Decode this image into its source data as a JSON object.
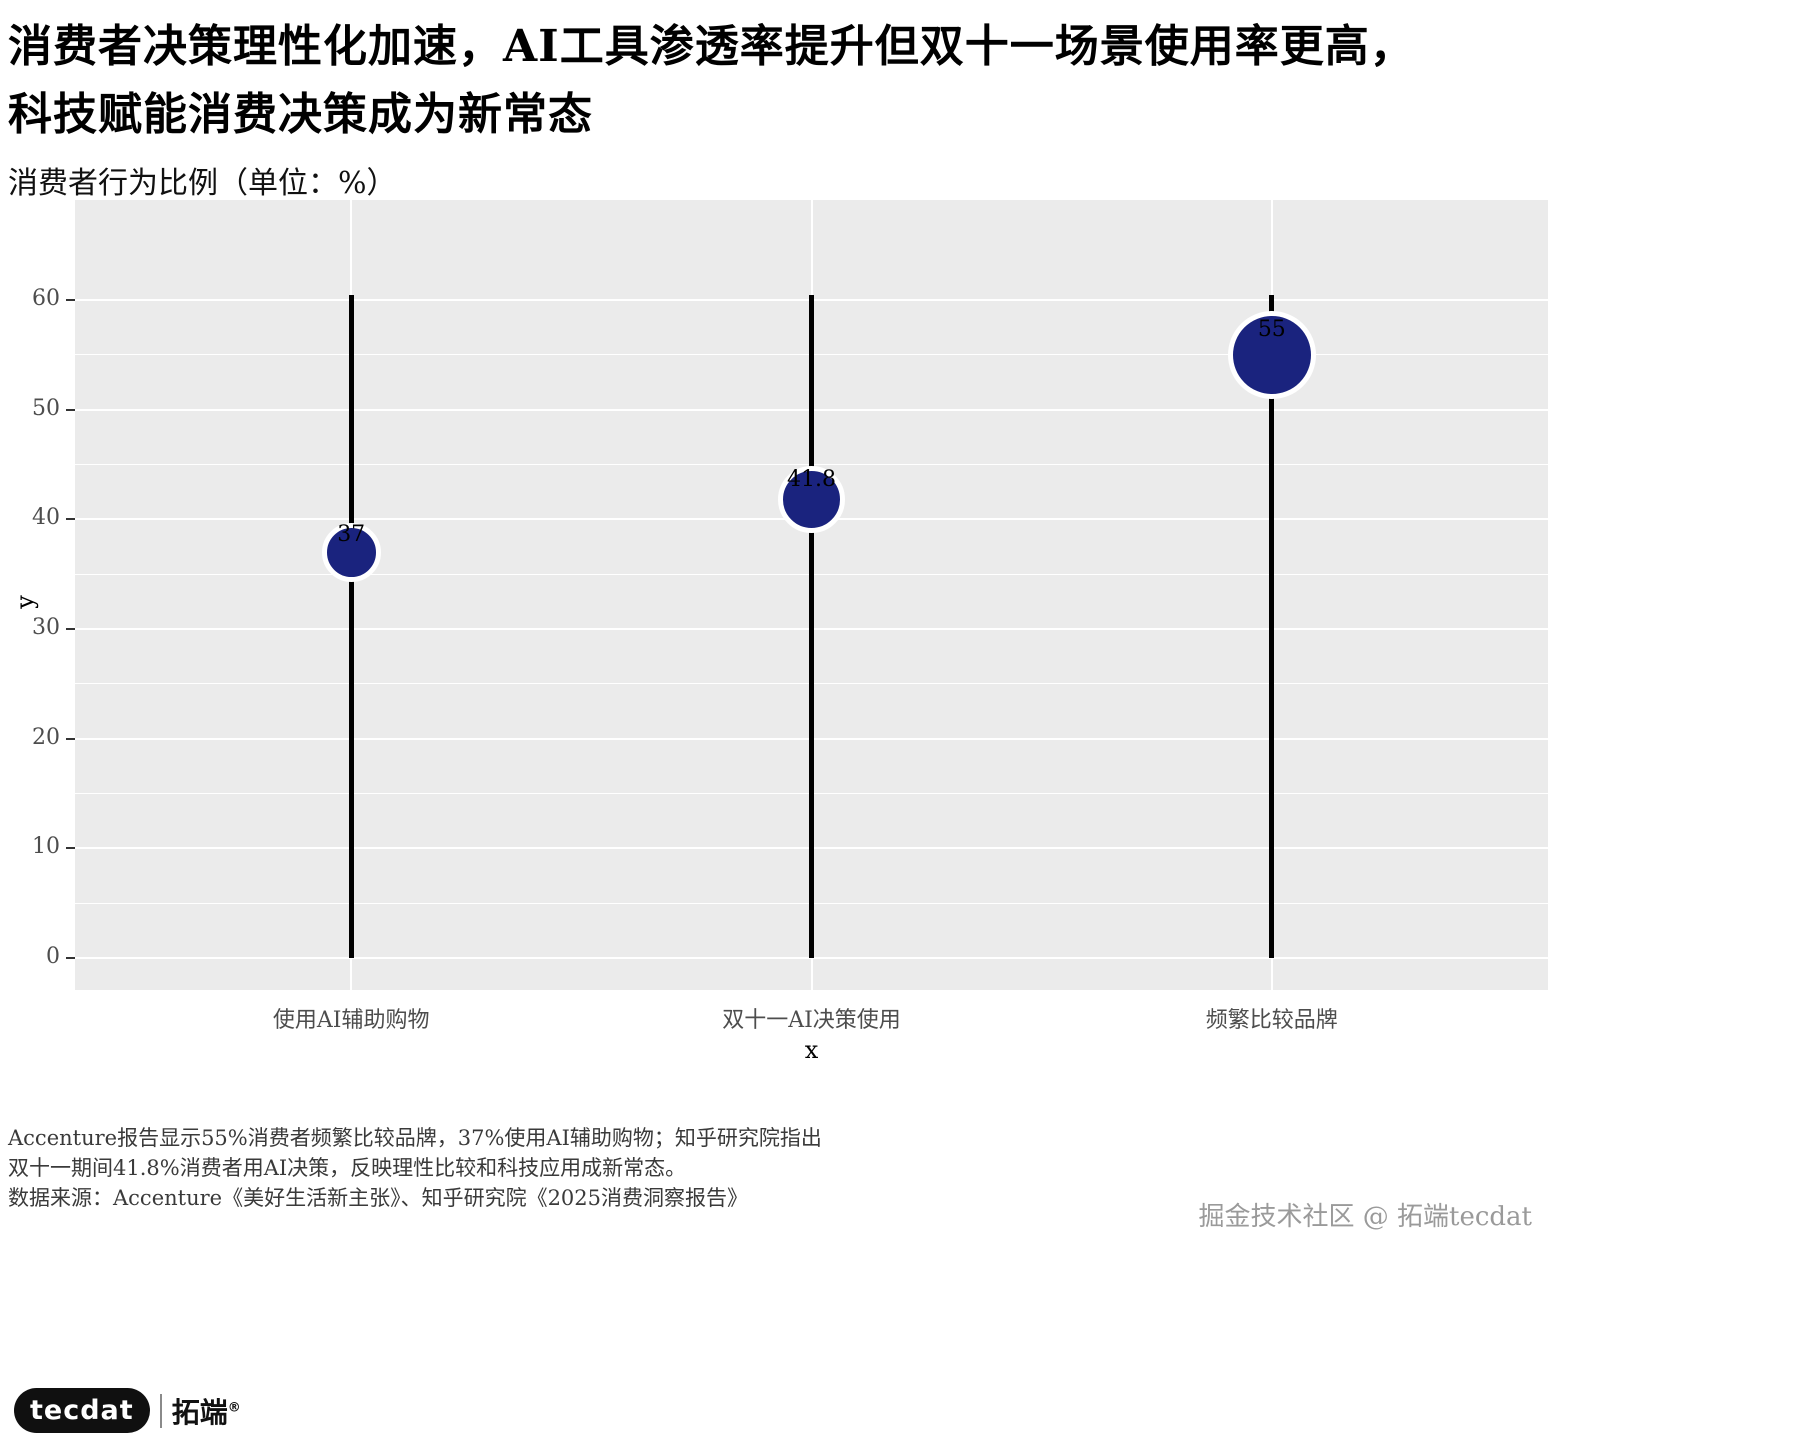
{
  "title": {
    "line1": "消费者决策理性化加速，AI工具渗透率提升但双十一场景使用率更高，",
    "line2": "科技赋能消费决策成为新常态"
  },
  "subtitle": "消费者行为比例（单位：%）",
  "chart_data": {
    "type": "lollipop",
    "categories": [
      "使用AI辅助购物",
      "双十一AI决策使用",
      "频繁比较品牌"
    ],
    "values": [
      37,
      41.8,
      55
    ],
    "point_labels": [
      "37",
      "41.8",
      "55"
    ],
    "xlabel": "x",
    "ylabel": "y",
    "ylim": [
      0,
      60
    ],
    "yticks": [
      0,
      10,
      20,
      30,
      40,
      50,
      60
    ],
    "stem_top_value": 60.5,
    "grid": "on",
    "legend": "none",
    "colors": {
      "panel": "#EBEBEB",
      "grid_major": "#FFFFFF",
      "grid_minor": "#FFFFFF",
      "stem": "#000000",
      "point_fill": "#1A237E",
      "point_border": "#FFFFFF",
      "tick_label": "#4D4D4D",
      "tick_mark": "#333333",
      "value_label": "#000000"
    }
  },
  "notes": {
    "line1": "Accenture报告显示55%消费者频繁比较品牌，37%使用AI辅助购物；知乎研究院指出",
    "line2": "双十一期间41.8%消费者用AI决策，反映理性比较和科技应用成新常态。",
    "source": "数据来源：Accenture《美好生活新主张》、知乎研究院《2025消费洞察报告》"
  },
  "footer": {
    "logo_latin": "tecdat",
    "logo_cn": "拓端",
    "logo_reg": "®",
    "credit": "掘金技术社区 @ 拓端tecdat"
  }
}
